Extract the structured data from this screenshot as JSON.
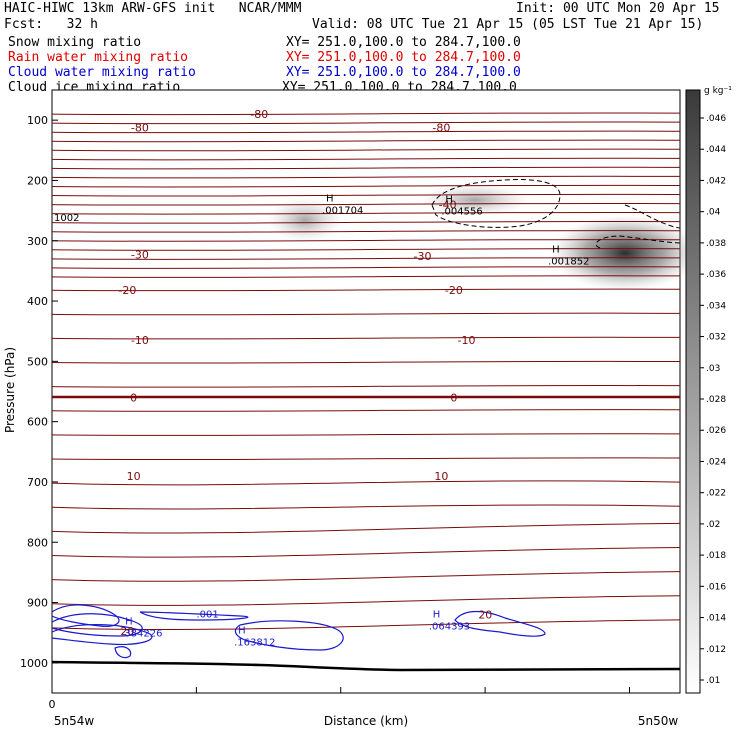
{
  "header": {
    "line1_left": "HAIC-HIWC 13km ARW-GFS init   NCAR/MMM",
    "line1_right": "Init: 00 UTC Mon 20 Apr 15",
    "line2_left": "Fcst:   32 h",
    "line2_right": "Valid: 08 UTC Tue 21 Apr 15 (05 LST Tue 21 Apr 15)",
    "fields": [
      {
        "name": "Snow mixing ratio",
        "xy": "XY= 251.0,100.0 to 284.7,100.0",
        "color": "#000000"
      },
      {
        "name": "Rain water mixing ratio",
        "xy": "XY= 251.0,100.0 to 284.7,100.0",
        "color": "#e00000"
      },
      {
        "name": "Cloud water mixing ratio",
        "xy": "XY= 251.0,100.0 to 284.7,100.0",
        "color": "#0000cc"
      },
      {
        "name": "Cloud ice mixing ratio",
        "xy": "XY= 251.0,100.0 to 284.7,100.0",
        "color": "#000000"
      }
    ]
  },
  "chart_data": {
    "type": "contour",
    "ylabel": "Pressure (hPa)",
    "xlabel": "Distance (km)",
    "x_start_label": "0",
    "x_left_label": "5n54w",
    "x_right_label": "5n50w",
    "y_ticks": [
      100,
      200,
      300,
      400,
      500,
      600,
      700,
      800,
      900,
      1000
    ],
    "ylim": [
      1050,
      50
    ],
    "colorbar": {
      "unit": "g kg⁻¹",
      "ticks": [
        ".046",
        ".044",
        ".042",
        ".04",
        ".038",
        ".036",
        ".034",
        ".032",
        ".03",
        ".028",
        ".026",
        ".024",
        ".022",
        ".02",
        ".018",
        ".016",
        ".014",
        ".012",
        ".01"
      ]
    },
    "temperature_labels": [
      {
        "text": "-80",
        "x": 0.33,
        "p": 90
      },
      {
        "text": "-80",
        "x": 0.14,
        "p": 112
      },
      {
        "text": "-80",
        "x": 0.62,
        "p": 112
      },
      {
        "text": "-40",
        "x": 0.63,
        "p": 240
      },
      {
        "text": "-30",
        "x": 0.14,
        "p": 323
      },
      {
        "text": "-30",
        "x": 0.59,
        "p": 325
      },
      {
        "text": "-20",
        "x": 0.12,
        "p": 382
      },
      {
        "text": "-20",
        "x": 0.64,
        "p": 382
      },
      {
        "text": "-10",
        "x": 0.14,
        "p": 465
      },
      {
        "text": "-10",
        "x": 0.66,
        "p": 465
      },
      {
        "text": "0",
        "x": 0.13,
        "p": 560
      },
      {
        "text": "0",
        "x": 0.64,
        "p": 560
      },
      {
        "text": "10",
        "x": 0.13,
        "p": 690
      },
      {
        "text": "10",
        "x": 0.62,
        "p": 690
      },
      {
        "text": "20",
        "x": 0.69,
        "p": 920
      },
      {
        "text": "20",
        "x": 0.12,
        "p": 947
      }
    ],
    "maxima": [
      {
        "text": ".001704",
        "x": 0.43,
        "p": 248
      },
      {
        "text": ".004556",
        "x": 0.62,
        "p": 250
      },
      {
        "text": ".001852",
        "x": 0.79,
        "p": 333
      },
      {
        "text": ".384226",
        "x": 0.11,
        "p": 950
      },
      {
        "text": ".163812",
        "x": 0.29,
        "p": 965
      },
      {
        "text": ".064393",
        "x": 0.6,
        "p": 938
      },
      {
        "text": ".001",
        "x": 0.23,
        "p": 918
      }
    ],
    "left_edge_label": "1002"
  }
}
